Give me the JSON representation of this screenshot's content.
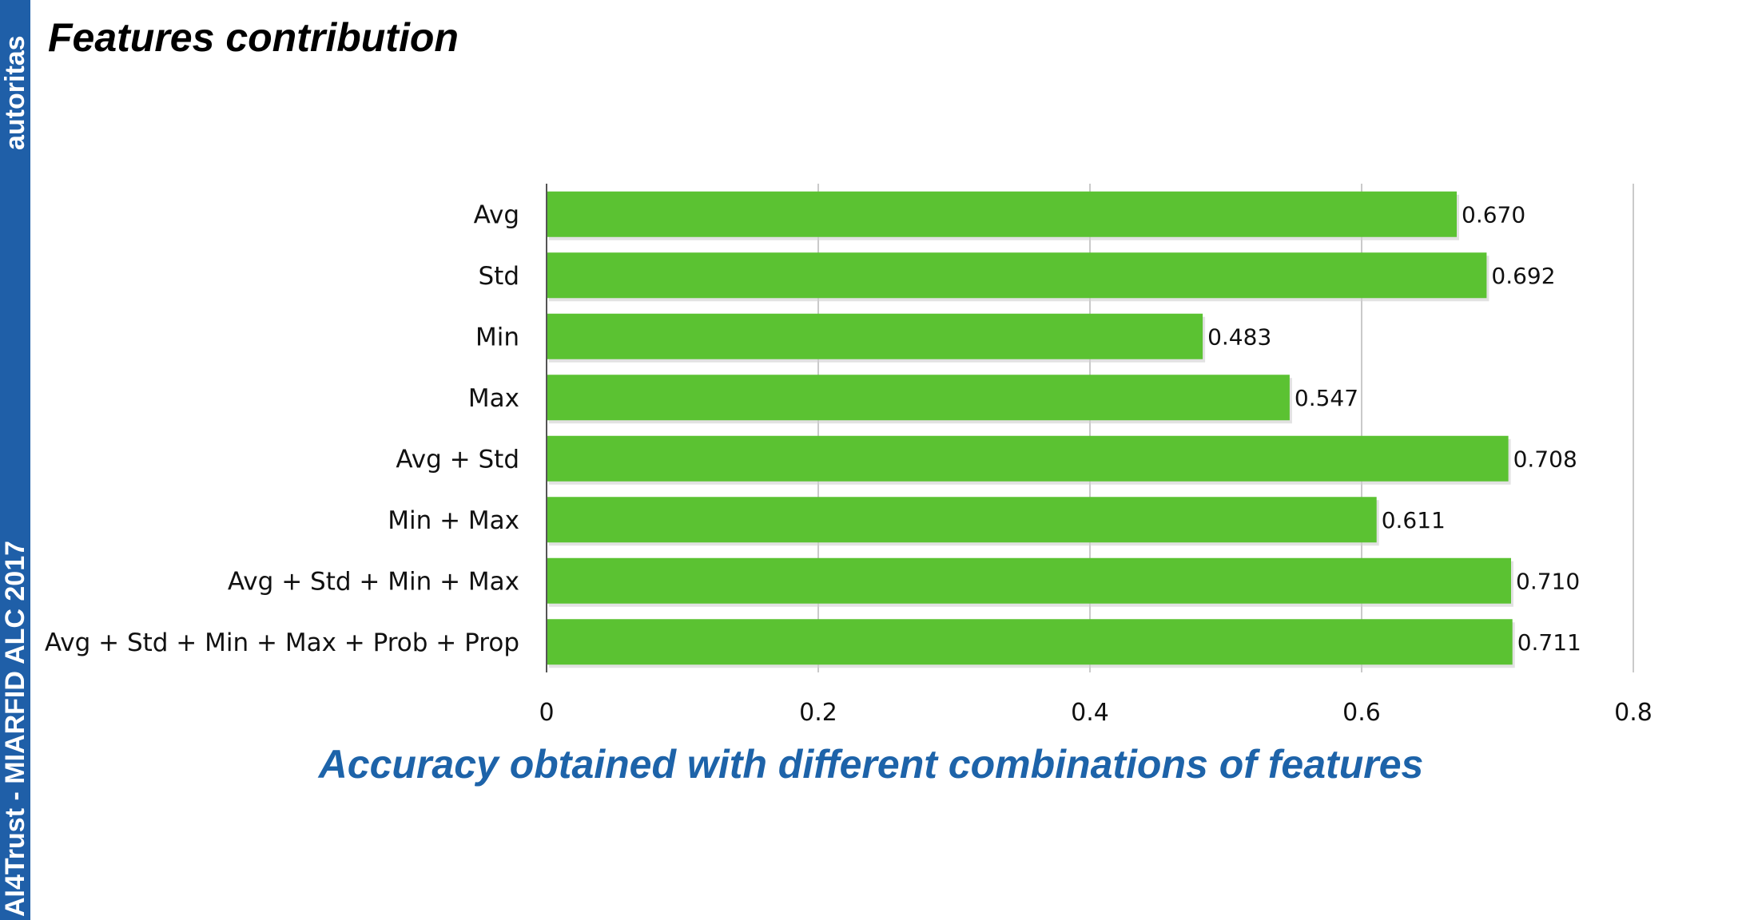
{
  "sidebar": {
    "top_text": "autoritas",
    "bottom_text": "AI4Trust - MIARFID ALC 2017",
    "color": "#1f5fa8"
  },
  "slide": {
    "title": "Features contribution",
    "caption": "Accuracy obtained with different combinations of features",
    "caption_color": "#1d63a9"
  },
  "chart_data": {
    "type": "bar",
    "orientation": "horizontal",
    "categories": [
      "Avg",
      "Std",
      "Min",
      "Max",
      "Avg + Std",
      "Min + Max",
      "Avg + Std + Min + Max",
      "Avg + Std + Min + Max + Prob + Prop"
    ],
    "values": [
      0.67,
      0.692,
      0.483,
      0.547,
      0.708,
      0.611,
      0.71,
      0.711
    ],
    "value_labels": [
      "0.670",
      "0.692",
      "0.483",
      "0.547",
      "0.708",
      "0.611",
      "0.710",
      "0.711"
    ],
    "x_ticks": [
      "0",
      "0.2",
      "0.4",
      "0.6",
      "0.8"
    ],
    "xlim": [
      0,
      0.8
    ],
    "grid": true,
    "bar_color": "#5bc232",
    "title": "",
    "xlabel": "",
    "ylabel": ""
  }
}
